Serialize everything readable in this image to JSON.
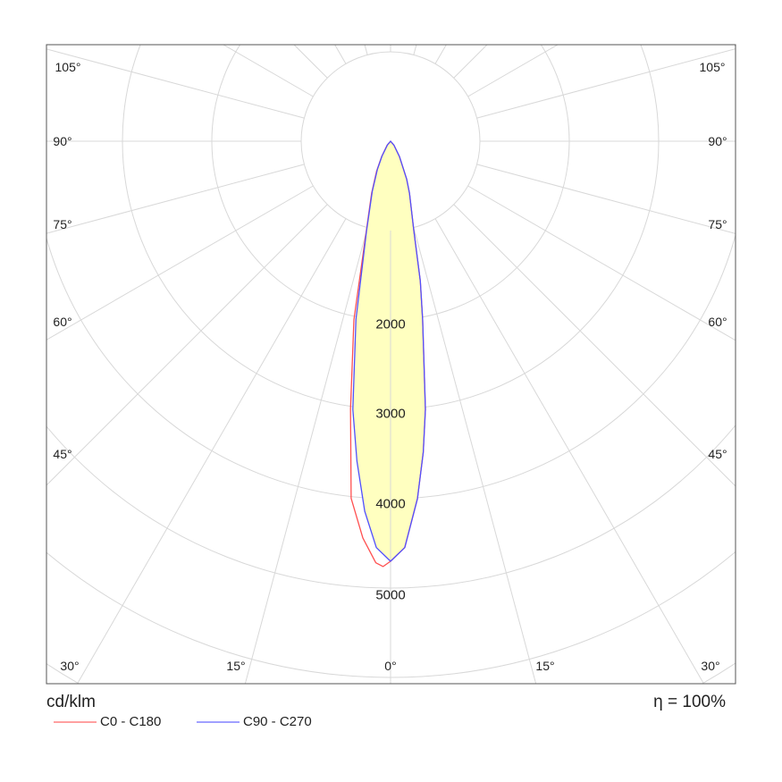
{
  "chart_data": {
    "type": "polar",
    "title": "",
    "unit_label": "cd/klm",
    "efficiency_label": "η = 100%",
    "radial_ticks": [
      2000,
      3000,
      4000,
      5000
    ],
    "radial_step": 1000,
    "angle_step_deg": 15,
    "angle_labels": {
      "left": [
        "105°",
        "90°",
        "75°",
        "60°",
        "45°"
      ],
      "right": [
        "105°",
        "90°",
        "75°",
        "60°",
        "45°"
      ],
      "bottom": [
        "30°",
        "15°",
        "0°",
        "15°",
        "30°"
      ]
    },
    "series": [
      {
        "name": "C0 - C180",
        "color": "#ff8080",
        "angles": [
          -60,
          -40,
          -30,
          -25,
          -20,
          -15,
          -11.6,
          -8.5,
          -6.3,
          -4,
          -2,
          -1,
          0,
          2,
          4.3,
          6,
          7.4,
          10.2,
          12,
          14.6,
          20,
          23,
          30,
          40,
          60
        ],
        "values": [
          0,
          60,
          200,
          370,
          620,
          1060,
          2040,
          3030,
          4020,
          4450,
          4720,
          4760,
          4700,
          4550,
          4010,
          3500,
          3025,
          2030,
          1600,
          1030,
          620,
          460,
          200,
          60,
          0
        ]
      },
      {
        "name": "C90 - C270",
        "color": "#8080ff",
        "angles": [
          -60,
          -40,
          -30,
          -25,
          -20,
          -15,
          -11,
          -8,
          -6,
          -4,
          -2,
          0,
          2,
          4.3,
          6,
          7.4,
          10.2,
          12,
          14.6,
          20,
          23,
          30,
          40,
          60
        ],
        "values": [
          0,
          55,
          190,
          350,
          600,
          1040,
          2030,
          3030,
          3600,
          4150,
          4550,
          4700,
          4550,
          4010,
          3500,
          3025,
          2030,
          1600,
          1030,
          620,
          460,
          200,
          60,
          0
        ]
      }
    ],
    "fill_color": "#ffffc0"
  }
}
